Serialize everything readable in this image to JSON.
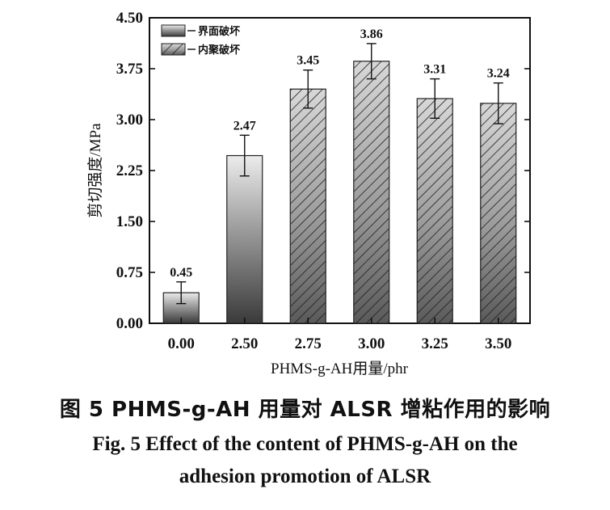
{
  "chart_data": {
    "type": "bar",
    "categories": [
      "0.00",
      "2.50",
      "2.75",
      "3.00",
      "3.25",
      "3.50"
    ],
    "values": [
      0.45,
      2.47,
      3.45,
      3.86,
      3.31,
      3.24
    ],
    "errors": [
      0.16,
      0.3,
      0.28,
      0.26,
      0.29,
      0.3
    ],
    "value_labels": [
      "0.45",
      "2.47",
      "3.45",
      "3.86",
      "3.31",
      "3.24"
    ],
    "failure_mode": [
      "interface",
      "interface",
      "cohesive",
      "cohesive",
      "cohesive",
      "cohesive"
    ],
    "xlabel": "PHMS-g-AH用量/phr",
    "ylabel": "剪切强度/MPa",
    "ylim": [
      0,
      4.5
    ],
    "yticks": [
      "0.00",
      "0.75",
      "1.50",
      "2.25",
      "3.00",
      "3.75",
      "4.50"
    ],
    "ytick_values": [
      0,
      0.75,
      1.5,
      2.25,
      3.0,
      3.75,
      4.5
    ],
    "grid": false,
    "legend_position": "top-left",
    "legend": [
      {
        "name": "界面破坏",
        "style": "gradient"
      },
      {
        "name": "内聚破坏",
        "style": "hatched"
      }
    ]
  },
  "caption": {
    "cn": "图 5   PHMS-g-AH 用量对 ALSR 增粘作用的影响",
    "en_line1": "Fig. 5   Effect of the content of PHMS-g-AH on the",
    "en_line2": "adhesion promotion of ALSR"
  }
}
